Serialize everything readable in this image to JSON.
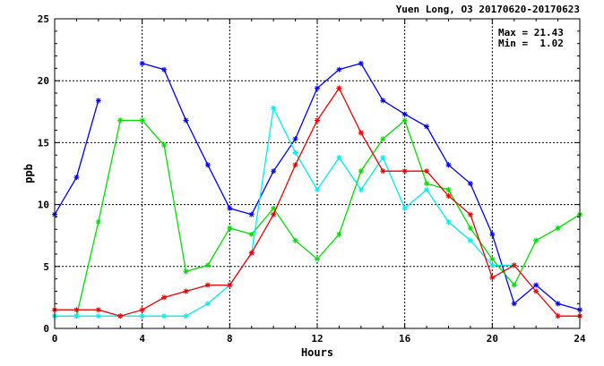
{
  "chart_data": {
    "type": "line",
    "title": "Yuen Long, O3 20170620-20170623",
    "xlabel": "Hours",
    "ylabel": "ppb",
    "xlim": [
      0,
      24
    ],
    "ylim": [
      0,
      25
    ],
    "xticks": [
      0,
      4,
      8,
      12,
      16,
      20,
      24
    ],
    "yticks": [
      0,
      5,
      10,
      15,
      20,
      25
    ],
    "grid": true,
    "stats": {
      "max_label": "Max = 21.43",
      "min_label": "Min =  1.02"
    },
    "x": [
      0,
      1,
      2,
      3,
      4,
      5,
      6,
      7,
      8,
      9,
      10,
      11,
      12,
      13,
      14,
      15,
      16,
      17,
      18,
      19,
      20,
      21,
      22,
      23,
      24
    ],
    "series": [
      {
        "color": "#0000ff",
        "values": [
          9.2,
          12.2,
          18.4,
          null,
          21.4,
          20.9,
          16.8,
          13.2,
          9.7,
          9.2,
          12.7,
          15.3,
          19.4,
          20.9,
          21.4,
          18.4,
          17.3,
          16.3,
          13.2,
          11.7,
          7.6,
          2.0,
          3.5,
          2.0,
          1.5
        ]
      },
      {
        "color": "#00dd00",
        "values": [
          1.0,
          1.0,
          8.6,
          16.8,
          16.8,
          14.8,
          4.6,
          5.1,
          8.1,
          7.6,
          9.7,
          7.1,
          5.6,
          7.6,
          12.7,
          15.3,
          16.8,
          11.7,
          11.2,
          8.1,
          5.6,
          3.5,
          7.1,
          8.1,
          9.2
        ]
      },
      {
        "color": "#00eeee",
        "values": [
          1.0,
          1.0,
          1.0,
          1.0,
          1.0,
          1.0,
          1.0,
          2.0,
          3.5,
          6.1,
          17.8,
          14.2,
          11.2,
          13.8,
          11.2,
          13.8,
          9.7,
          11.2,
          8.6,
          7.1,
          5.1,
          5.1,
          null,
          null,
          null
        ]
      },
      {
        "color": "#ee0000",
        "values": [
          1.5,
          1.5,
          1.5,
          1.0,
          1.5,
          2.5,
          3.0,
          3.5,
          3.5,
          6.1,
          9.2,
          13.2,
          16.8,
          19.4,
          15.8,
          12.7,
          12.7,
          12.7,
          10.7,
          9.2,
          4.1,
          5.1,
          3.0,
          1.0,
          1.0
        ]
      }
    ]
  }
}
